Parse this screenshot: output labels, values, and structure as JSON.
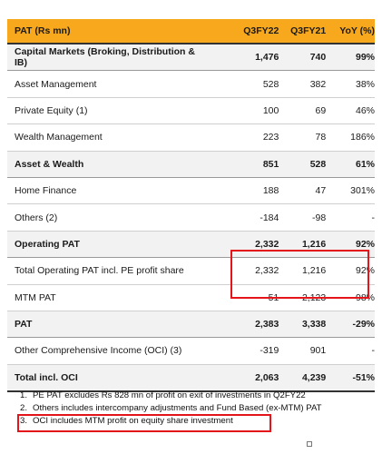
{
  "table": {
    "headers": [
      "PAT (Rs mn)",
      "Q3FY22",
      "Q3FY21",
      "YoY (%)"
    ],
    "rows": [
      {
        "label": "Capital Markets (Broking, Distribution & IB)",
        "q3fy22": "1,476",
        "q3fy21": "740",
        "yoy": "99%",
        "bold": true
      },
      {
        "label": "Asset Management",
        "q3fy22": "528",
        "q3fy21": "382",
        "yoy": "38%",
        "bold": false
      },
      {
        "label": "Private Equity (1)",
        "q3fy22": "100",
        "q3fy21": "69",
        "yoy": "46%",
        "bold": false
      },
      {
        "label": "Wealth Management",
        "q3fy22": "223",
        "q3fy21": "78",
        "yoy": "186%",
        "bold": false
      },
      {
        "label": "Asset & Wealth",
        "q3fy22": "851",
        "q3fy21": "528",
        "yoy": "61%",
        "bold": true
      },
      {
        "label": "Home Finance",
        "q3fy22": "188",
        "q3fy21": "47",
        "yoy": "301%",
        "bold": false
      },
      {
        "label": "Others (2)",
        "q3fy22": "-184",
        "q3fy21": "-98",
        "yoy": "-",
        "bold": false
      },
      {
        "label": "Operating PAT",
        "q3fy22": "2,332",
        "q3fy21": "1,216",
        "yoy": "92%",
        "bold": true
      },
      {
        "label": "Total Operating PAT incl. PE profit share",
        "q3fy22": "2,332",
        "q3fy21": "1,216",
        "yoy": "92%",
        "bold": false
      },
      {
        "label": "MTM PAT",
        "q3fy22": "51",
        "q3fy21": "2,123",
        "yoy": "-98%",
        "bold": false
      },
      {
        "label": "PAT",
        "q3fy22": "2,383",
        "q3fy21": "3,338",
        "yoy": "-29%",
        "bold": true
      },
      {
        "label": "Other Comprehensive Income (OCI) (3)",
        "q3fy22": "-319",
        "q3fy21": "901",
        "yoy": "-",
        "bold": false
      },
      {
        "label": "Total incl. OCI",
        "q3fy22": "2,063",
        "q3fy21": "4,239",
        "yoy": "-51%",
        "bold": true
      }
    ]
  },
  "footnotes": [
    {
      "num": "1.",
      "text": "PE PAT excludes Rs 828 mn of profit on exit of investments in Q2FY22"
    },
    {
      "num": "2.",
      "text": "Others includes intercompany adjustments and Fund Based (ex-MTM) PAT"
    },
    {
      "num": "3.",
      "text": "OCI includes MTM profit on equity share investment"
    }
  ],
  "colors": {
    "header_background": "#f8a81d",
    "bold_row_background": "#f2f2f2",
    "highlight_border": "#e3141a"
  }
}
